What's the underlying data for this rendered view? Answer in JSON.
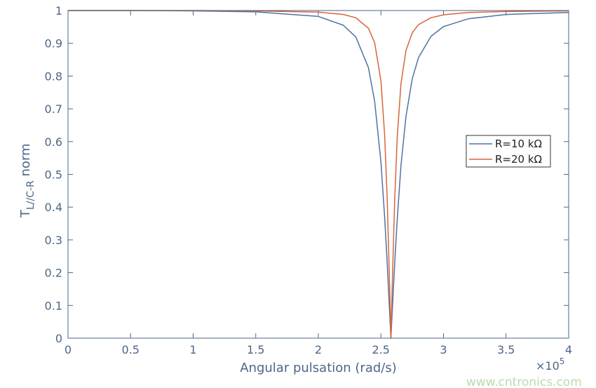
{
  "chart_data": {
    "type": "line",
    "xlabel": "Angular pulsation (rad/s)",
    "ylabel_main": "T",
    "ylabel_sub": "L//C-R",
    "ylabel_suffix": " norm",
    "x_multiplier_base": "×10",
    "x_multiplier_exp": "5",
    "xlim": [
      0,
      4
    ],
    "ylim": [
      0,
      1
    ],
    "xticks": [
      "0",
      "0.5",
      "1",
      "1.5",
      "2",
      "2.5",
      "3",
      "3.5",
      "4"
    ],
    "yticks": [
      "0",
      "0.1",
      "0.2",
      "0.3",
      "0.4",
      "0.5",
      "0.6",
      "0.7",
      "0.8",
      "0.9",
      "1"
    ],
    "grid": false,
    "legend_position": "right",
    "x": [
      0,
      0.5,
      1,
      1.5,
      2,
      2.2,
      2.3,
      2.4,
      2.45,
      2.5,
      2.53,
      2.55,
      2.57,
      2.58,
      2.59,
      2.61,
      2.63,
      2.66,
      2.7,
      2.75,
      2.8,
      2.9,
      3,
      3.2,
      3.5,
      4
    ],
    "series": [
      {
        "name": "R=10 kΩ",
        "color": "#4e73a3",
        "values": [
          1,
          1,
          0.999,
          0.996,
          0.982,
          0.955,
          0.919,
          0.826,
          0.723,
          0.537,
          0.368,
          0.23,
          0.078,
          0,
          0.078,
          0.228,
          0.362,
          0.526,
          0.677,
          0.791,
          0.856,
          0.921,
          0.951,
          0.975,
          0.988,
          0.994
        ]
      },
      {
        "name": "R=20 kΩ",
        "color": "#d9643a",
        "values": [
          1,
          1,
          1,
          0.999,
          0.995,
          0.988,
          0.978,
          0.946,
          0.902,
          0.785,
          0.619,
          0.426,
          0.155,
          0,
          0.154,
          0.423,
          0.612,
          0.776,
          0.878,
          0.932,
          0.957,
          0.978,
          0.987,
          0.994,
          0.997,
          0.999
        ]
      }
    ]
  },
  "watermark": "www.cntronics.com"
}
